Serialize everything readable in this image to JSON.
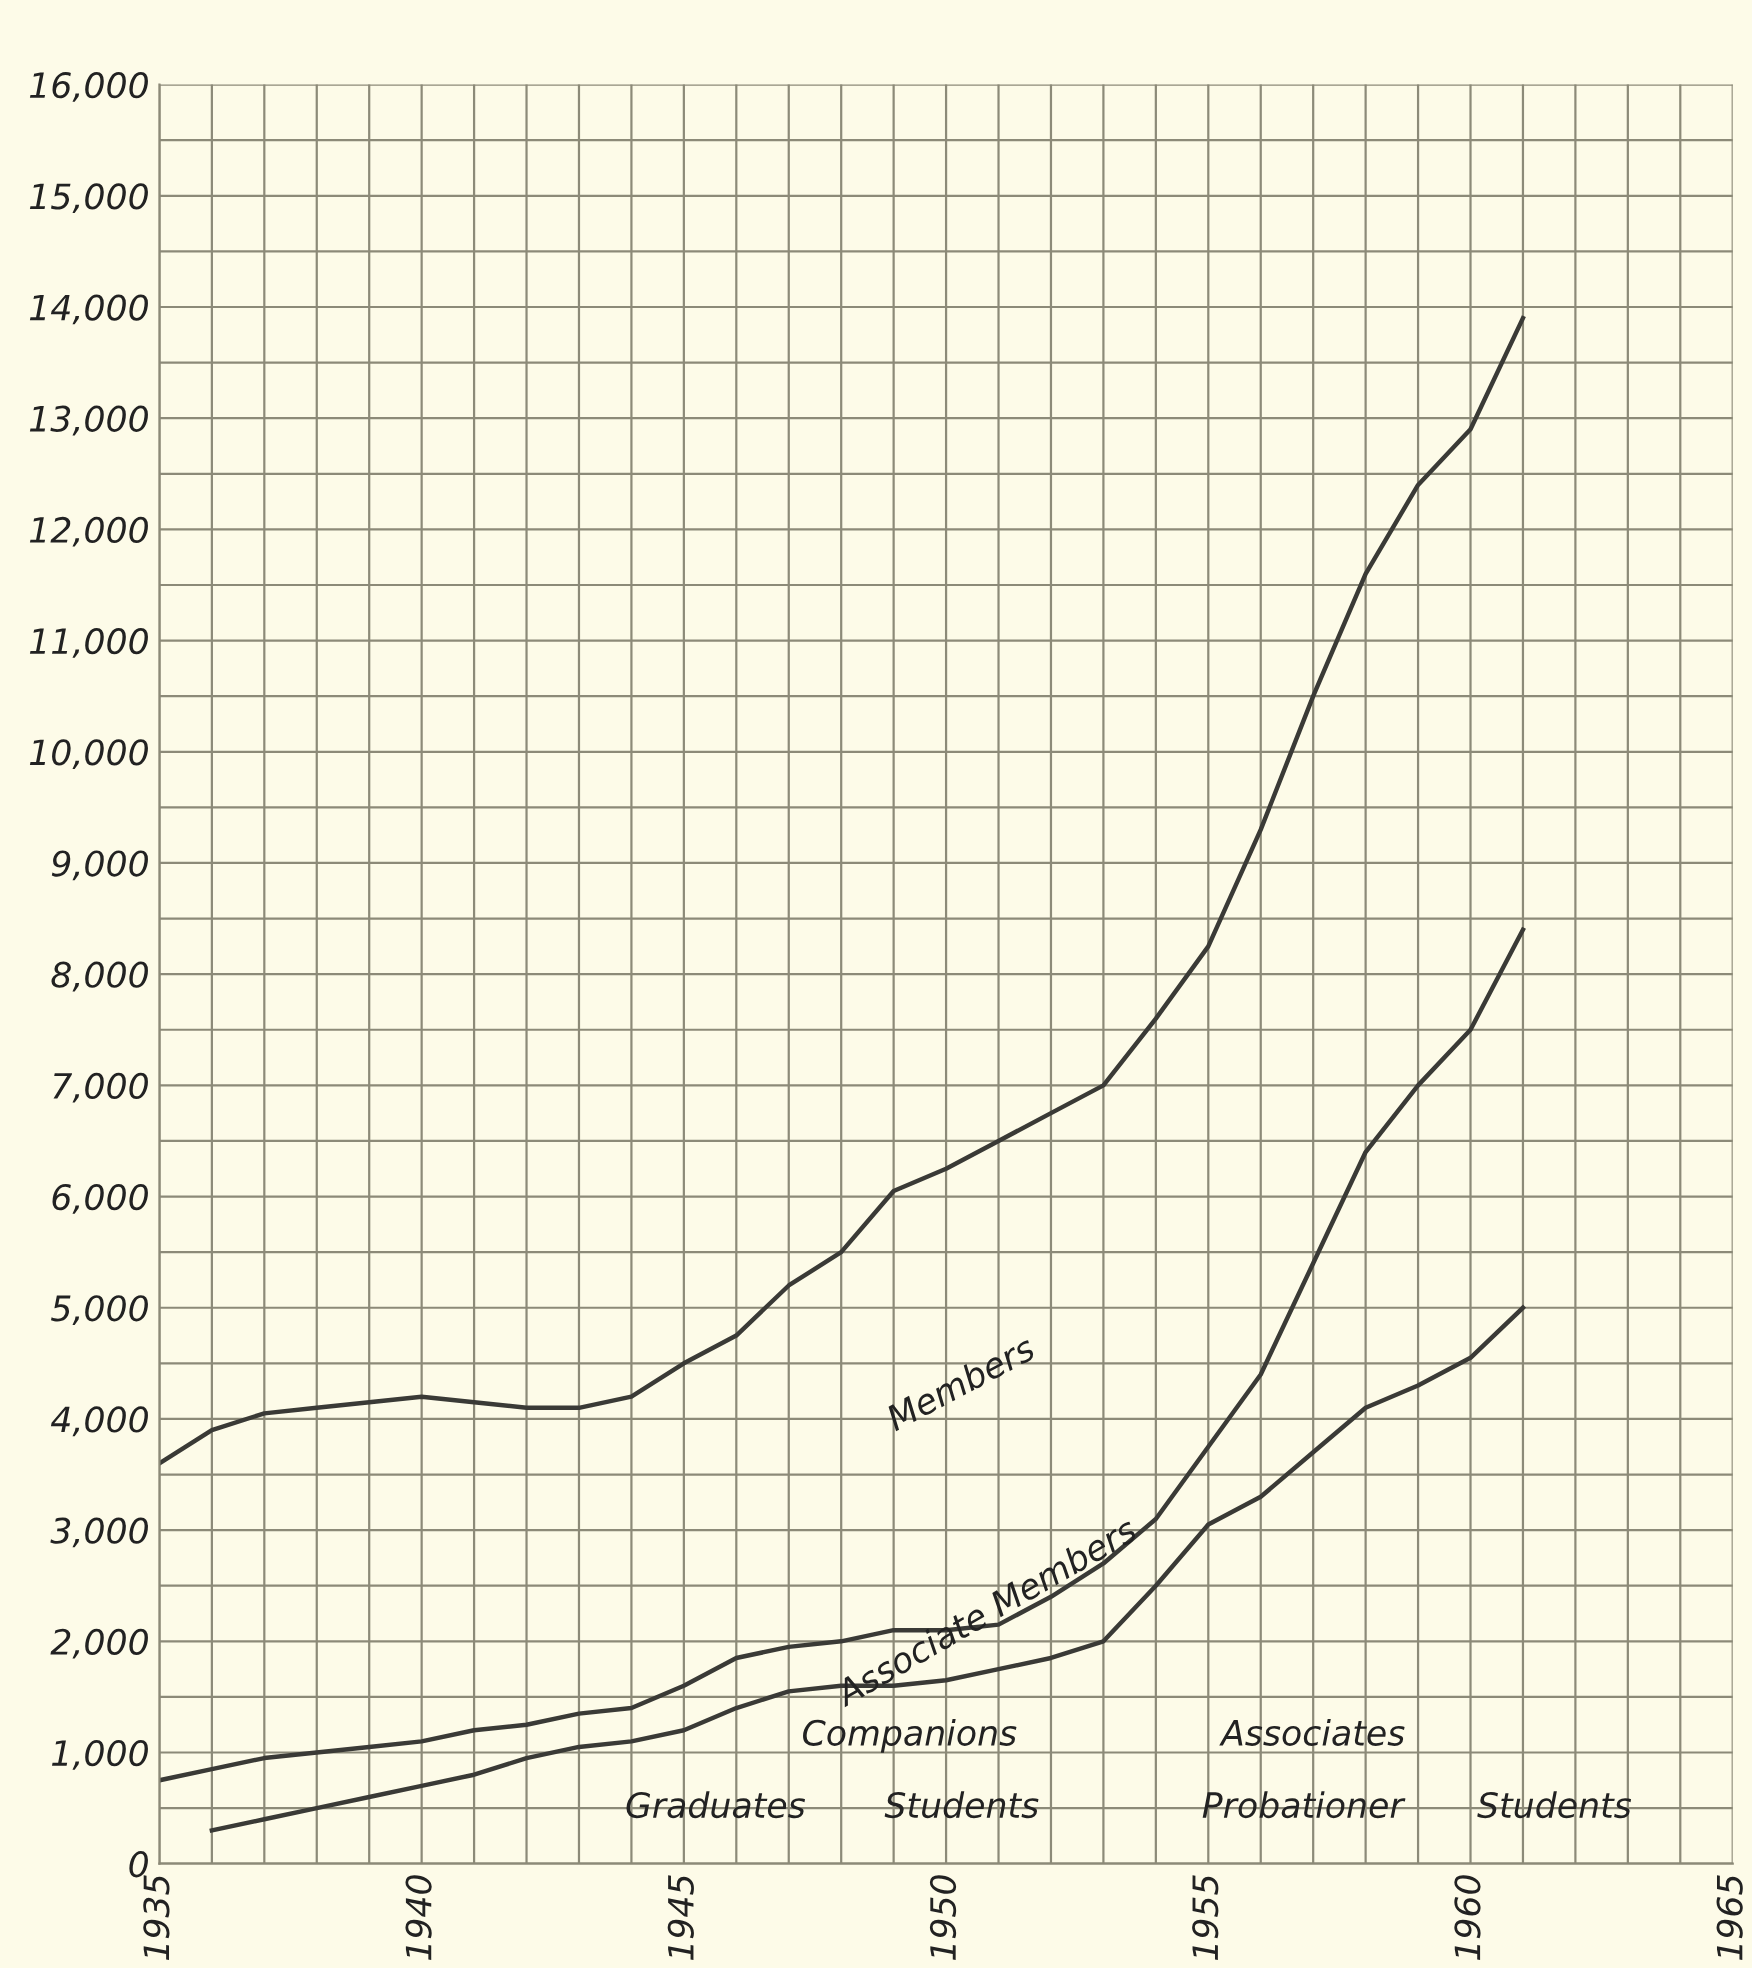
{
  "chart_data": {
    "type": "line",
    "x": [
      1935,
      1936,
      1937,
      1938,
      1939,
      1940,
      1941,
      1942,
      1943,
      1944,
      1945,
      1946,
      1947,
      1948,
      1949,
      1950,
      1951,
      1952,
      1953,
      1954,
      1955,
      1956,
      1957,
      1958,
      1959,
      1960,
      1961
    ],
    "series": [
      {
        "name": "Members",
        "color": "#3a3a36",
        "values": [
          3600,
          3900,
          4050,
          4100,
          4150,
          4200,
          4150,
          4100,
          4100,
          4200,
          4500,
          4750,
          5200,
          5500,
          6050,
          6250,
          6500,
          6750,
          7000,
          7600,
          8250,
          9300,
          10500,
          11600,
          12400,
          12900,
          13900
        ]
      },
      {
        "name": "Associate Members",
        "color": "#3a3a36",
        "values": [
          750,
          850,
          950,
          1000,
          1050,
          1100,
          1200,
          1250,
          1350,
          1400,
          1600,
          1850,
          1950,
          2000,
          2100,
          2100,
          2150,
          2400,
          2700,
          3100,
          3750,
          4400,
          5400,
          6400,
          7000,
          7500,
          8400
        ]
      },
      {
        "color": "#3a3a36",
        "values": [
          null,
          300,
          400,
          500,
          600,
          700,
          800,
          950,
          1050,
          1100,
          1200,
          1400,
          1550,
          1600,
          1600,
          1650,
          1750,
          1850,
          2000,
          2500,
          3050,
          3300,
          3700,
          4100,
          4300,
          4550,
          5000
        ]
      }
    ],
    "annotations": [
      "Companions",
      "Graduates",
      "Students",
      "Associates",
      "Probationer",
      "Students"
    ],
    "xlim": [
      1935,
      1965
    ],
    "xticks": [
      1935,
      {
        "value": 1936,
        "label": null
      },
      {
        "value": 1937,
        "label": null
      },
      {
        "value": 1938,
        "label": null
      },
      {
        "value": 1939,
        "label": null
      },
      1940,
      {
        "value": 1941,
        "label": null
      },
      {
        "value": 1942,
        "label": null
      },
      {
        "value": 1943,
        "label": null
      },
      {
        "value": 1944,
        "label": null
      },
      1945,
      {
        "value": 1946,
        "label": null
      },
      {
        "value": 1947,
        "label": null
      },
      {
        "value": 1948,
        "label": null
      },
      {
        "value": 1949,
        "label": null
      },
      1950,
      {
        "value": 1951,
        "label": null
      },
      {
        "value": 1952,
        "label": null
      },
      {
        "value": 1953,
        "label": null
      },
      {
        "value": 1954,
        "label": null
      },
      1955,
      {
        "value": 1956,
        "label": null
      },
      {
        "value": 1957,
        "label": null
      },
      {
        "value": 1958,
        "label": null
      },
      {
        "value": 1959,
        "label": null
      },
      1960,
      {
        "value": 1961,
        "label": null
      },
      {
        "value": 1962,
        "label": null
      },
      {
        "value": 1963,
        "label": null
      },
      {
        "value": 1964,
        "label": null
      },
      1965
    ],
    "ylim": [
      0,
      16000
    ],
    "yticks": [
      {
        "value": 0,
        "label": "0"
      },
      {
        "value": 500,
        "label": null
      },
      {
        "value": 1000,
        "label": "1,000"
      },
      {
        "value": 1500,
        "label": null
      },
      {
        "value": 2000,
        "label": "2,000"
      },
      {
        "value": 2500,
        "label": null
      },
      {
        "value": 3000,
        "label": "3,000"
      },
      {
        "value": 3500,
        "label": null
      },
      {
        "value": 4000,
        "label": "4,000"
      },
      {
        "value": 4500,
        "label": null
      },
      {
        "value": 5000,
        "label": "5,000"
      },
      {
        "value": 5500,
        "label": null
      },
      {
        "value": 6000,
        "label": "6,000"
      },
      {
        "value": 6500,
        "label": null
      },
      {
        "value": 7000,
        "label": "7,000"
      },
      {
        "value": 7500,
        "label": null
      },
      {
        "value": 8000,
        "label": "8,000"
      },
      {
        "value": 8500,
        "label": null
      },
      {
        "value": 9000,
        "label": "9,000"
      },
      {
        "value": 9500,
        "label": null
      },
      {
        "value": 10000,
        "label": "10,000"
      },
      {
        "value": 10500,
        "label": null
      },
      {
        "value": 11000,
        "label": "11,000"
      },
      {
        "value": 11500,
        "label": null
      },
      {
        "value": 12000,
        "label": "12,000"
      },
      {
        "value": 12500,
        "label": null
      },
      {
        "value": 13000,
        "label": "13,000"
      },
      {
        "value": 13500,
        "label": null
      },
      {
        "value": 14000,
        "label": "14,000"
      },
      {
        "value": 14500,
        "label": null
      },
      {
        "value": 15000,
        "label": "15,000"
      },
      {
        "value": 15500,
        "label": null
      },
      {
        "value": 16000,
        "label": "16,000"
      }
    ],
    "grid": true,
    "legend": false,
    "marker": "none",
    "line_style": "solid"
  }
}
